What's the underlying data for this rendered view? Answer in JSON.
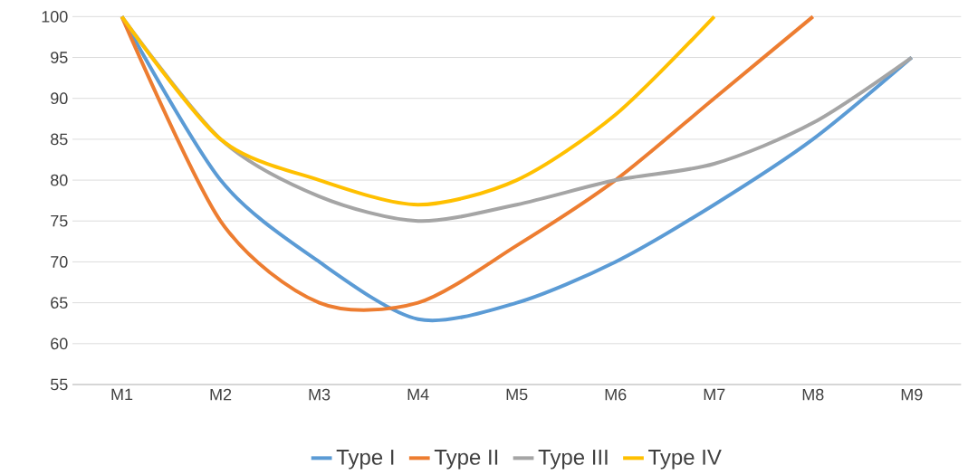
{
  "chart_data": {
    "type": "line",
    "categories": [
      "M1",
      "M2",
      "M3",
      "M4",
      "M5",
      "M6",
      "M7",
      "M8",
      "M9"
    ],
    "series": [
      {
        "name": "Type I",
        "color": "#5b9bd5",
        "values": [
          100,
          80,
          70,
          63,
          65,
          70,
          77,
          85,
          95
        ]
      },
      {
        "name": "Type II",
        "color": "#ed7d31",
        "values": [
          100,
          75,
          65,
          65,
          72,
          80,
          90,
          100,
          null
        ]
      },
      {
        "name": "Type III",
        "color": "#a5a5a5",
        "values": [
          100,
          85,
          78,
          75,
          77,
          80,
          82,
          87,
          95
        ]
      },
      {
        "name": "Type IV",
        "color": "#ffc000",
        "values": [
          100,
          85,
          80,
          77,
          80,
          88,
          100,
          null,
          null
        ]
      }
    ],
    "ylim": [
      55,
      100
    ],
    "yticks": [
      55,
      60,
      65,
      70,
      75,
      80,
      85,
      90,
      95,
      100
    ],
    "grid": "y",
    "legend": "bottom",
    "marker": "none",
    "line_style": "solid"
  }
}
